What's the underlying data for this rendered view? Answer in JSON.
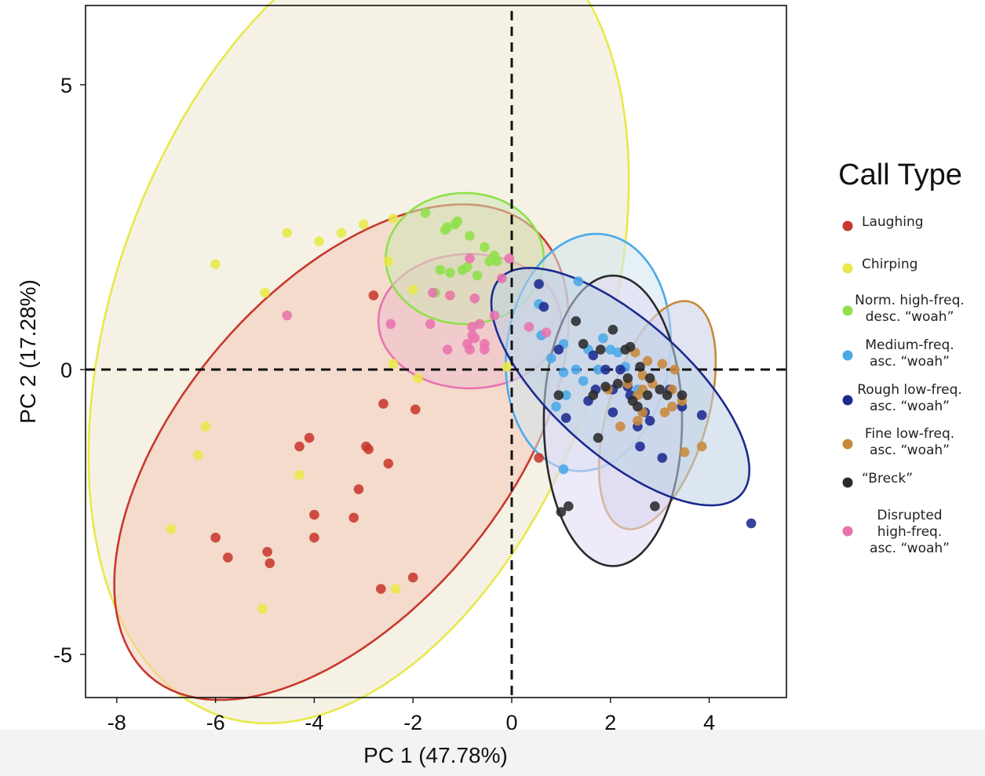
{
  "chart_data": {
    "type": "scatter",
    "xlabel": "PC 1 (47.78%)",
    "ylabel": "PC 2 (17.28%)",
    "xlim": [
      -8.7,
      5.5
    ],
    "ylim": [
      -5.85,
      6.35
    ],
    "x_ticks": [
      -8,
      -6,
      -4,
      -2,
      0,
      2,
      4
    ],
    "y_ticks": [
      5,
      0,
      -5
    ],
    "reference_lines": {
      "x": 0,
      "y": 0,
      "style": "dashed"
    },
    "grid": false,
    "legend_title": "Call Type",
    "legend_position": "right",
    "series": [
      {
        "name": "Laughing",
        "color": "#c8382e",
        "fill": "#f2c9b8",
        "ellipse": {
          "cx": -3.45,
          "cy": -1.45,
          "a": 5.55,
          "b": 3.05,
          "angle_deg": 42
        },
        "x": [
          -2.8,
          -2.6,
          -1.95,
          -4.1,
          -4.3,
          -2.95,
          -2.9,
          -2.5,
          -3.1,
          -4.0,
          -3.2,
          -4.0,
          -6.0,
          -5.75,
          -4.95,
          -4.9,
          -2.65,
          -2.0,
          0.55
        ],
        "y": [
          1.3,
          -0.6,
          -0.7,
          -1.2,
          -1.35,
          -1.35,
          -1.4,
          -1.65,
          -2.1,
          -2.55,
          -2.6,
          -2.95,
          -2.95,
          -3.3,
          -3.2,
          -3.4,
          -3.85,
          -3.65,
          -1.55
        ]
      },
      {
        "name": "Chirping",
        "color": "#e8e84a",
        "fill": "#ece8d0",
        "ellipse": {
          "cx": -3.1,
          "cy": 0.9,
          "a": 7.55,
          "b": 4.85,
          "angle_deg": 64
        },
        "x": [
          -2.4,
          -3.0,
          -3.45,
          -3.9,
          -4.55,
          -6.0,
          -5.0,
          -2.5,
          -2.0,
          -1.25,
          -6.2,
          -6.35,
          -4.3,
          -6.9,
          -2.35,
          -5.05,
          -1.9,
          -0.1,
          -2.4
        ],
        "y": [
          2.65,
          2.55,
          2.4,
          2.25,
          2.4,
          1.85,
          1.35,
          1.9,
          1.4,
          1.3,
          -1.0,
          -1.5,
          -1.85,
          -2.8,
          -3.85,
          -4.2,
          -0.15,
          0.05,
          0.1
        ]
      },
      {
        "name": "Norm. high-freq. desc. “woah”",
        "color": "#8fe04a",
        "fill": "#d0e6b6",
        "ellipse": {
          "cx": -0.95,
          "cy": 1.95,
          "a": 1.6,
          "b": 1.15,
          "angle_deg": 0
        },
        "x": [
          -1.75,
          -1.3,
          -1.35,
          -1.15,
          -1.1,
          -0.85,
          -0.55,
          -0.45,
          -0.35,
          -1.0,
          -1.45,
          -1.25,
          -0.7,
          -0.9,
          -1.55,
          -0.3
        ],
        "y": [
          2.75,
          2.5,
          2.45,
          2.55,
          2.6,
          2.35,
          2.15,
          1.9,
          2.0,
          1.75,
          1.75,
          1.7,
          1.65,
          1.8,
          1.35,
          1.9
        ]
      },
      {
        "name": "Medium-freq. asc. “woah”",
        "color": "#4ba9e8",
        "fill": "#cfe6ee",
        "ellipse": {
          "cx": 1.55,
          "cy": 0.3,
          "a": 2.1,
          "b": 1.65,
          "angle_deg": 78
        },
        "x": [
          1.35,
          0.55,
          0.6,
          1.05,
          1.55,
          1.3,
          1.05,
          1.1,
          0.9,
          2.0,
          2.15,
          1.85,
          2.3,
          1.75,
          1.45,
          2.55,
          1.05,
          0.8
        ],
        "y": [
          1.55,
          1.15,
          0.6,
          0.45,
          0.35,
          0.0,
          -0.05,
          -0.45,
          -0.65,
          0.35,
          0.3,
          0.55,
          0.05,
          0.0,
          -0.2,
          -0.35,
          -1.75,
          0.2
        ]
      },
      {
        "name": "Rough low-freq. asc. “woah”",
        "color": "#1c2a8e",
        "fill": "#bed2e4",
        "ellipse": {
          "cx": 2.2,
          "cy": -0.3,
          "a": 3.1,
          "b": 1.25,
          "angle_deg": -36
        },
        "x": [
          0.55,
          0.65,
          0.95,
          1.65,
          1.9,
          2.05,
          2.4,
          2.6,
          3.05,
          3.45,
          3.85,
          4.85,
          2.7,
          2.8,
          2.55,
          1.7,
          1.1,
          1.55,
          2.05,
          3.2,
          2.2,
          2.35
        ],
        "y": [
          1.5,
          1.1,
          0.35,
          0.25,
          0.0,
          -0.35,
          -0.45,
          -1.35,
          -1.55,
          -0.65,
          -0.8,
          -2.7,
          -0.75,
          -0.9,
          -1.0,
          -0.35,
          -0.85,
          -0.55,
          -0.75,
          -0.35,
          0.0,
          -0.3
        ]
      },
      {
        "name": "Fine low-freq. asc. “woah”",
        "color": "#c8893a",
        "fill": "#c9cde6",
        "ellipse": {
          "cx": 2.95,
          "cy": -0.8,
          "a": 2.1,
          "b": 1.0,
          "angle_deg": 70
        },
        "x": [
          2.5,
          2.75,
          3.05,
          2.65,
          2.85,
          2.55,
          2.35,
          2.65,
          3.25,
          3.3,
          3.45,
          3.1,
          3.25,
          3.5,
          3.85,
          2.65,
          2.55,
          2.2,
          1.95
        ],
        "y": [
          0.3,
          0.15,
          0.1,
          -0.1,
          -0.25,
          -0.45,
          -0.25,
          -0.75,
          -0.35,
          0.0,
          -0.55,
          -0.75,
          -0.65,
          -1.45,
          -1.35,
          -0.35,
          -0.9,
          -1.0,
          -0.35
        ]
      },
      {
        "name": "“Breck”",
        "color": "#2a2a2a",
        "fill": "#e2d8f4",
        "ellipse": {
          "cx": 2.05,
          "cy": -0.9,
          "a": 2.55,
          "b": 1.4,
          "angle_deg": 90
        },
        "x": [
          1.3,
          2.05,
          2.3,
          2.4,
          2.6,
          2.8,
          2.75,
          3.0,
          3.15,
          3.45,
          1.45,
          1.8,
          2.35,
          2.45,
          2.15,
          1.9,
          1.75,
          1.0,
          1.15,
          2.9,
          0.95,
          1.65,
          2.55
        ],
        "y": [
          0.85,
          0.7,
          0.35,
          0.4,
          0.05,
          -0.15,
          -0.45,
          -0.35,
          -0.45,
          -0.45,
          0.45,
          0.35,
          -0.15,
          -0.55,
          -0.25,
          -0.3,
          -1.2,
          -2.5,
          -2.4,
          -2.4,
          -0.45,
          -0.45,
          -0.65
        ]
      },
      {
        "name": "Disrupted high-freq. asc. “woah”",
        "color": "#e873ae",
        "fill": "#eebccc",
        "ellipse": {
          "cx": -0.85,
          "cy": 0.85,
          "a": 1.85,
          "b": 1.18,
          "angle_deg": 0
        },
        "x": [
          -0.85,
          -0.2,
          -0.05,
          -1.25,
          -0.75,
          -0.35,
          -0.65,
          -0.8,
          -0.75,
          -1.3,
          -0.55,
          -1.65,
          -0.8,
          -0.85,
          -2.45,
          -0.9,
          -0.55,
          0.35,
          0.7,
          -4.55,
          -1.6
        ],
        "y": [
          1.95,
          1.6,
          1.95,
          1.3,
          1.25,
          0.95,
          0.8,
          0.75,
          0.55,
          0.35,
          0.45,
          0.8,
          0.6,
          0.35,
          0.8,
          0.45,
          0.35,
          0.75,
          0.65,
          0.95,
          1.35
        ]
      }
    ]
  }
}
